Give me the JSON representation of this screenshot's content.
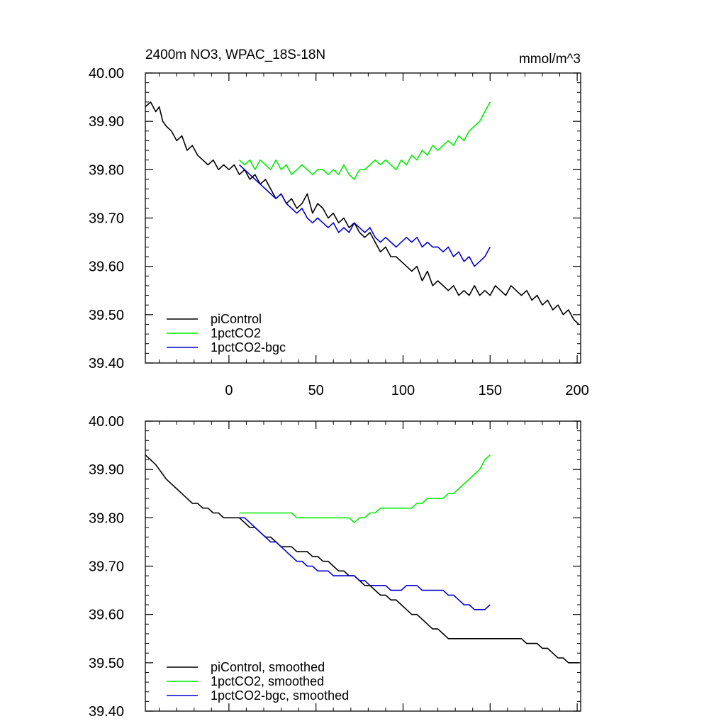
{
  "chart_data": [
    {
      "type": "line",
      "title": "2400m NO3, WPAC_18S-18N",
      "units": "mmol/m^3",
      "xlabel": "",
      "ylabel": "",
      "xlim": [
        -48,
        202
      ],
      "ylim": [
        39.4,
        40.0
      ],
      "xticks": [
        0,
        50,
        100,
        150,
        200
      ],
      "yticks": [
        39.4,
        39.5,
        39.6,
        39.7,
        39.8,
        39.9,
        40.0
      ],
      "ytick_labels": [
        "39.40",
        "39.50",
        "39.60",
        "39.70",
        "39.80",
        "39.90",
        "40.00"
      ],
      "legend_position": "bottom-left",
      "series": [
        {
          "name": "piControl",
          "color": "#000000",
          "x": [
            -48,
            -45,
            -42,
            -40,
            -38,
            -36,
            -33,
            -30,
            -27,
            -24,
            -21,
            -18,
            -15,
            -12,
            -9,
            -6,
            -3,
            0,
            3,
            6,
            9,
            12,
            15,
            18,
            21,
            24,
            27,
            30,
            33,
            36,
            39,
            42,
            45,
            48,
            51,
            54,
            57,
            60,
            63,
            66,
            69,
            72,
            75,
            78,
            81,
            84,
            87,
            90,
            93,
            96,
            99,
            102,
            105,
            108,
            111,
            114,
            117,
            120,
            123,
            126,
            129,
            132,
            135,
            138,
            141,
            144,
            147,
            150,
            153,
            156,
            159,
            162,
            165,
            168,
            171,
            174,
            177,
            180,
            183,
            186,
            189,
            192,
            195,
            198,
            201
          ],
          "values": [
            39.93,
            39.94,
            39.92,
            39.93,
            39.9,
            39.89,
            39.88,
            39.86,
            39.87,
            39.84,
            39.85,
            39.83,
            39.82,
            39.81,
            39.82,
            39.8,
            39.81,
            39.8,
            39.81,
            39.79,
            39.8,
            39.78,
            39.79,
            39.77,
            39.78,
            39.76,
            39.74,
            39.75,
            39.73,
            39.74,
            39.72,
            39.73,
            39.75,
            39.71,
            39.73,
            39.72,
            39.7,
            39.71,
            39.69,
            39.7,
            39.68,
            39.69,
            39.67,
            39.66,
            39.67,
            39.65,
            39.63,
            39.64,
            39.62,
            39.62,
            39.61,
            39.6,
            39.59,
            39.6,
            39.57,
            39.59,
            39.56,
            39.57,
            39.56,
            39.55,
            39.56,
            39.54,
            39.55,
            39.54,
            39.56,
            39.54,
            39.55,
            39.54,
            39.56,
            39.55,
            39.54,
            39.56,
            39.55,
            39.54,
            39.55,
            39.53,
            39.54,
            39.52,
            39.53,
            39.51,
            39.52,
            39.5,
            39.51,
            39.49,
            39.48
          ],
          "smoothed_label": "piControl, smoothed",
          "smoothed_values": [
            39.93,
            39.92,
            39.91,
            39.9,
            39.89,
            39.88,
            39.87,
            39.86,
            39.85,
            39.84,
            39.83,
            39.83,
            39.82,
            39.82,
            39.81,
            39.81,
            39.8,
            39.8,
            39.8,
            39.8,
            39.79,
            39.78,
            39.78,
            39.77,
            39.76,
            39.76,
            39.75,
            39.74,
            39.74,
            39.74,
            39.73,
            39.73,
            39.73,
            39.72,
            39.72,
            39.71,
            39.71,
            39.7,
            39.69,
            39.69,
            39.68,
            39.68,
            39.67,
            39.66,
            39.66,
            39.65,
            39.64,
            39.64,
            39.63,
            39.63,
            39.62,
            39.61,
            39.6,
            39.6,
            39.59,
            39.58,
            39.57,
            39.57,
            39.56,
            39.55,
            39.55,
            39.55,
            39.55,
            39.55,
            39.55,
            39.55,
            39.55,
            39.55,
            39.55,
            39.55,
            39.55,
            39.55,
            39.55,
            39.55,
            39.54,
            39.54,
            39.54,
            39.53,
            39.53,
            39.52,
            39.51,
            39.51,
            39.5,
            39.5,
            39.5
          ]
        },
        {
          "name": "1pctCO2",
          "color": "#00ee00",
          "x": [
            6,
            9,
            12,
            15,
            18,
            21,
            24,
            27,
            30,
            33,
            36,
            39,
            42,
            45,
            48,
            51,
            54,
            57,
            60,
            63,
            66,
            69,
            72,
            75,
            78,
            81,
            84,
            87,
            90,
            93,
            96,
            99,
            102,
            105,
            108,
            111,
            114,
            117,
            120,
            123,
            126,
            129,
            132,
            135,
            138,
            141,
            144,
            147,
            150
          ],
          "values": [
            39.82,
            39.81,
            39.82,
            39.8,
            39.82,
            39.81,
            39.8,
            39.82,
            39.8,
            39.81,
            39.79,
            39.8,
            39.81,
            39.8,
            39.79,
            39.8,
            39.8,
            39.79,
            39.8,
            39.79,
            39.81,
            39.79,
            39.78,
            39.8,
            39.8,
            39.81,
            39.82,
            39.81,
            39.82,
            39.81,
            39.8,
            39.82,
            39.81,
            39.83,
            39.82,
            39.84,
            39.83,
            39.85,
            39.84,
            39.85,
            39.86,
            39.85,
            39.87,
            39.86,
            39.88,
            39.89,
            39.9,
            39.92,
            39.94
          ],
          "smoothed_label": "1pctCO2, smoothed",
          "smoothed_values": [
            39.81,
            39.81,
            39.81,
            39.81,
            39.81,
            39.81,
            39.81,
            39.81,
            39.81,
            39.81,
            39.81,
            39.8,
            39.8,
            39.8,
            39.8,
            39.8,
            39.8,
            39.8,
            39.8,
            39.8,
            39.8,
            39.8,
            39.79,
            39.8,
            39.8,
            39.81,
            39.81,
            39.82,
            39.82,
            39.82,
            39.82,
            39.82,
            39.82,
            39.82,
            39.83,
            39.83,
            39.84,
            39.84,
            39.84,
            39.84,
            39.85,
            39.85,
            39.86,
            39.87,
            39.88,
            39.89,
            39.9,
            39.92,
            39.93
          ]
        },
        {
          "name": "1pctCO2-bgc",
          "color": "#0000cc",
          "x": [
            6,
            9,
            12,
            15,
            18,
            21,
            24,
            27,
            30,
            33,
            36,
            39,
            42,
            45,
            48,
            51,
            54,
            57,
            60,
            63,
            66,
            69,
            72,
            75,
            78,
            81,
            84,
            87,
            90,
            93,
            96,
            99,
            102,
            105,
            108,
            111,
            114,
            117,
            120,
            123,
            126,
            129,
            132,
            135,
            138,
            141,
            144,
            147,
            150
          ],
          "values": [
            39.81,
            39.8,
            39.79,
            39.78,
            39.77,
            39.76,
            39.75,
            39.74,
            39.75,
            39.73,
            39.72,
            39.71,
            39.72,
            39.7,
            39.69,
            39.7,
            39.69,
            39.68,
            39.69,
            39.67,
            39.68,
            39.67,
            39.69,
            39.68,
            39.67,
            39.68,
            39.66,
            39.65,
            39.66,
            39.65,
            39.64,
            39.65,
            39.66,
            39.65,
            39.66,
            39.64,
            39.65,
            39.64,
            39.64,
            39.63,
            39.64,
            39.62,
            39.63,
            39.61,
            39.62,
            39.6,
            39.61,
            39.62,
            39.64
          ],
          "smoothed_label": "1pctCO2-bgc, smoothed",
          "smoothed_values": [
            39.8,
            39.8,
            39.79,
            39.78,
            39.77,
            39.76,
            39.75,
            39.75,
            39.74,
            39.73,
            39.72,
            39.71,
            39.71,
            39.7,
            39.7,
            39.69,
            39.69,
            39.69,
            39.68,
            39.68,
            39.68,
            39.68,
            39.68,
            39.67,
            39.67,
            39.66,
            39.66,
            39.66,
            39.66,
            39.65,
            39.65,
            39.65,
            39.66,
            39.66,
            39.66,
            39.65,
            39.65,
            39.65,
            39.65,
            39.65,
            39.64,
            39.64,
            39.63,
            39.62,
            39.62,
            39.61,
            39.61,
            39.61,
            39.62
          ]
        }
      ],
      "legend": [
        "piControl",
        "1pctCO2",
        "1pctCO2-bgc"
      ]
    },
    {
      "type": "line",
      "title": "",
      "xlabel": "",
      "ylabel": "",
      "xlim": [
        -48,
        202
      ],
      "ylim": [
        39.4,
        40.0
      ],
      "xticks": [
        0,
        50,
        100,
        150,
        200
      ],
      "yticks": [
        39.4,
        39.5,
        39.6,
        39.7,
        39.8,
        39.9,
        40.0
      ],
      "ytick_labels": [
        "39.40",
        "39.50",
        "39.60",
        "39.70",
        "39.80",
        "39.90",
        "40.00"
      ],
      "legend_position": "bottom-left",
      "legend": [
        "piControl, smoothed",
        "1pctCO2, smoothed",
        "1pctCO2-bgc, smoothed"
      ]
    }
  ]
}
